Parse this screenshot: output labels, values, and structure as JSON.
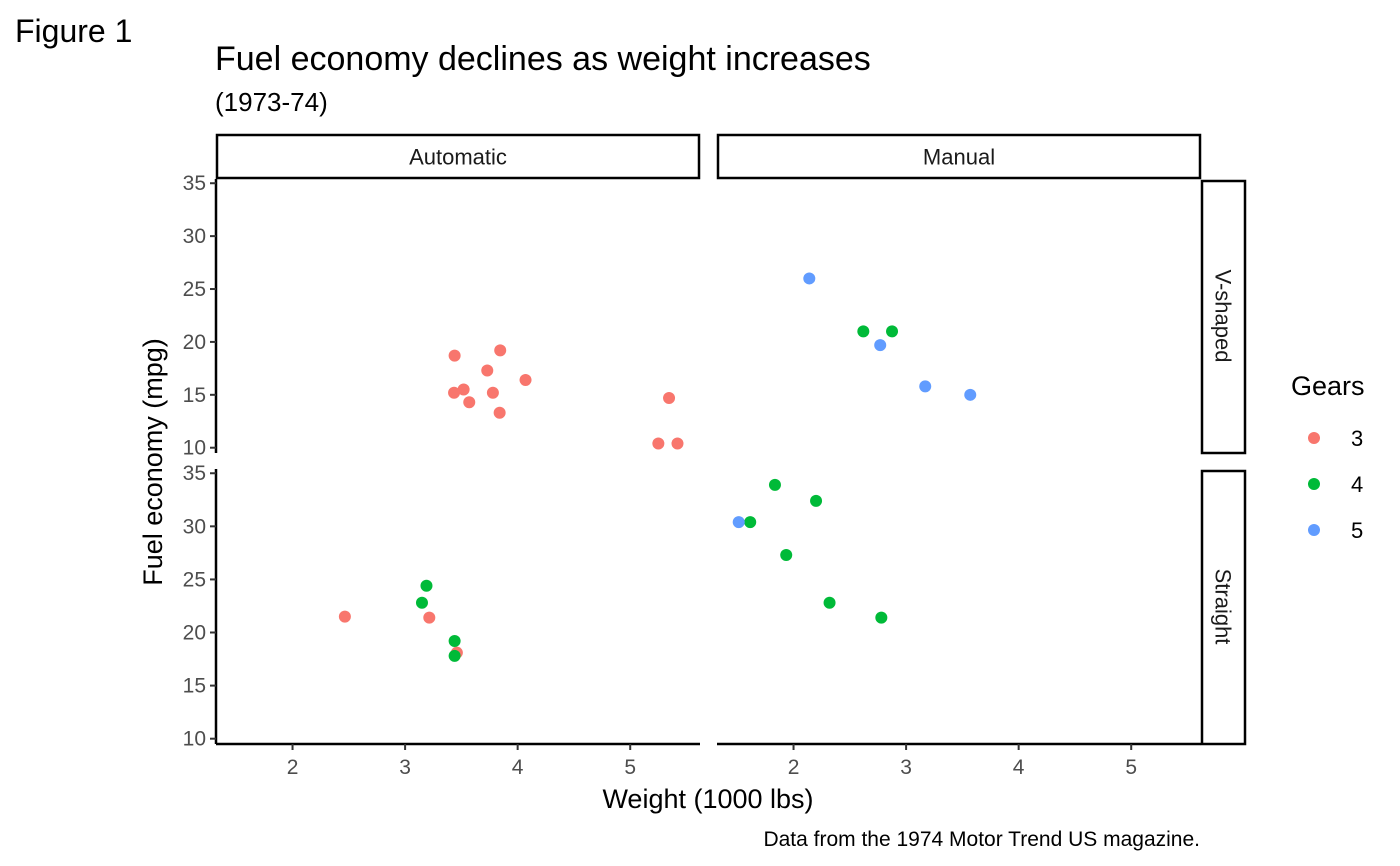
{
  "figure_label": "Figure 1",
  "title": "Fuel economy declines as weight increases",
  "subtitle": "(1973-74)",
  "caption": "Data from the 1974 Motor Trend US magazine.",
  "xlabel": "Weight (1000 lbs)",
  "ylabel": "Fuel economy (mpg)",
  "legend": {
    "title": "Gears",
    "placement": "right",
    "items": [
      {
        "label": "3",
        "color": "#F8766D"
      },
      {
        "label": "4",
        "color": "#00BA38"
      },
      {
        "label": "5",
        "color": "#619CFF"
      }
    ]
  },
  "chart_data": {
    "type": "scatter",
    "facet_columns": [
      "Automatic",
      "Manual"
    ],
    "facet_rows": [
      "V-shaped",
      "Straight"
    ],
    "xlim": [
      1.32,
      5.62
    ],
    "ylim": [
      9.5,
      35.4
    ],
    "x_ticks": [
      2,
      3,
      4,
      5
    ],
    "y_ticks": [
      10,
      15,
      20,
      25,
      30,
      35
    ],
    "grid": false,
    "series": [
      {
        "name": "3",
        "color": "#F8766D",
        "points": [
          {
            "col": "Automatic",
            "row": "V-shaped",
            "x": 3.44,
            "y": 18.7
          },
          {
            "col": "Automatic",
            "row": "V-shaped",
            "x": 3.57,
            "y": 14.3
          },
          {
            "col": "Automatic",
            "row": "V-shaped",
            "x": 4.07,
            "y": 16.4
          },
          {
            "col": "Automatic",
            "row": "V-shaped",
            "x": 3.73,
            "y": 17.3
          },
          {
            "col": "Automatic",
            "row": "V-shaped",
            "x": 3.78,
            "y": 15.2
          },
          {
            "col": "Automatic",
            "row": "V-shaped",
            "x": 5.25,
            "y": 10.4
          },
          {
            "col": "Automatic",
            "row": "V-shaped",
            "x": 5.42,
            "y": 10.4
          },
          {
            "col": "Automatic",
            "row": "V-shaped",
            "x": 5.345,
            "y": 14.7
          },
          {
            "col": "Automatic",
            "row": "V-shaped",
            "x": 3.52,
            "y": 15.5
          },
          {
            "col": "Automatic",
            "row": "V-shaped",
            "x": 3.435,
            "y": 15.2
          },
          {
            "col": "Automatic",
            "row": "V-shaped",
            "x": 3.84,
            "y": 13.3
          },
          {
            "col": "Automatic",
            "row": "V-shaped",
            "x": 3.845,
            "y": 19.2
          },
          {
            "col": "Automatic",
            "row": "Straight",
            "x": 3.215,
            "y": 21.4
          },
          {
            "col": "Automatic",
            "row": "Straight",
            "x": 3.46,
            "y": 18.1
          },
          {
            "col": "Automatic",
            "row": "Straight",
            "x": 2.465,
            "y": 21.5
          }
        ]
      },
      {
        "name": "4",
        "color": "#00BA38",
        "points": [
          {
            "col": "Automatic",
            "row": "Straight",
            "x": 3.19,
            "y": 24.4
          },
          {
            "col": "Automatic",
            "row": "Straight",
            "x": 3.15,
            "y": 22.8
          },
          {
            "col": "Automatic",
            "row": "Straight",
            "x": 3.44,
            "y": 19.2
          },
          {
            "col": "Automatic",
            "row": "Straight",
            "x": 3.44,
            "y": 17.8
          },
          {
            "col": "Manual",
            "row": "V-shaped",
            "x": 2.62,
            "y": 21.0
          },
          {
            "col": "Manual",
            "row": "V-shaped",
            "x": 2.875,
            "y": 21.0
          },
          {
            "col": "Manual",
            "row": "Straight",
            "x": 2.32,
            "y": 22.8
          },
          {
            "col": "Manual",
            "row": "Straight",
            "x": 2.2,
            "y": 32.4
          },
          {
            "col": "Manual",
            "row": "Straight",
            "x": 1.615,
            "y": 30.4
          },
          {
            "col": "Manual",
            "row": "Straight",
            "x": 1.835,
            "y": 33.9
          },
          {
            "col": "Manual",
            "row": "Straight",
            "x": 1.935,
            "y": 27.3
          },
          {
            "col": "Manual",
            "row": "Straight",
            "x": 2.78,
            "y": 21.4
          }
        ]
      },
      {
        "name": "5",
        "color": "#619CFF",
        "points": [
          {
            "col": "Manual",
            "row": "V-shaped",
            "x": 2.14,
            "y": 26.0
          },
          {
            "col": "Manual",
            "row": "V-shaped",
            "x": 3.17,
            "y": 15.8
          },
          {
            "col": "Manual",
            "row": "V-shaped",
            "x": 2.77,
            "y": 19.7
          },
          {
            "col": "Manual",
            "row": "V-shaped",
            "x": 3.57,
            "y": 15.0
          },
          {
            "col": "Manual",
            "row": "Straight",
            "x": 1.513,
            "y": 30.4
          }
        ]
      }
    ]
  }
}
